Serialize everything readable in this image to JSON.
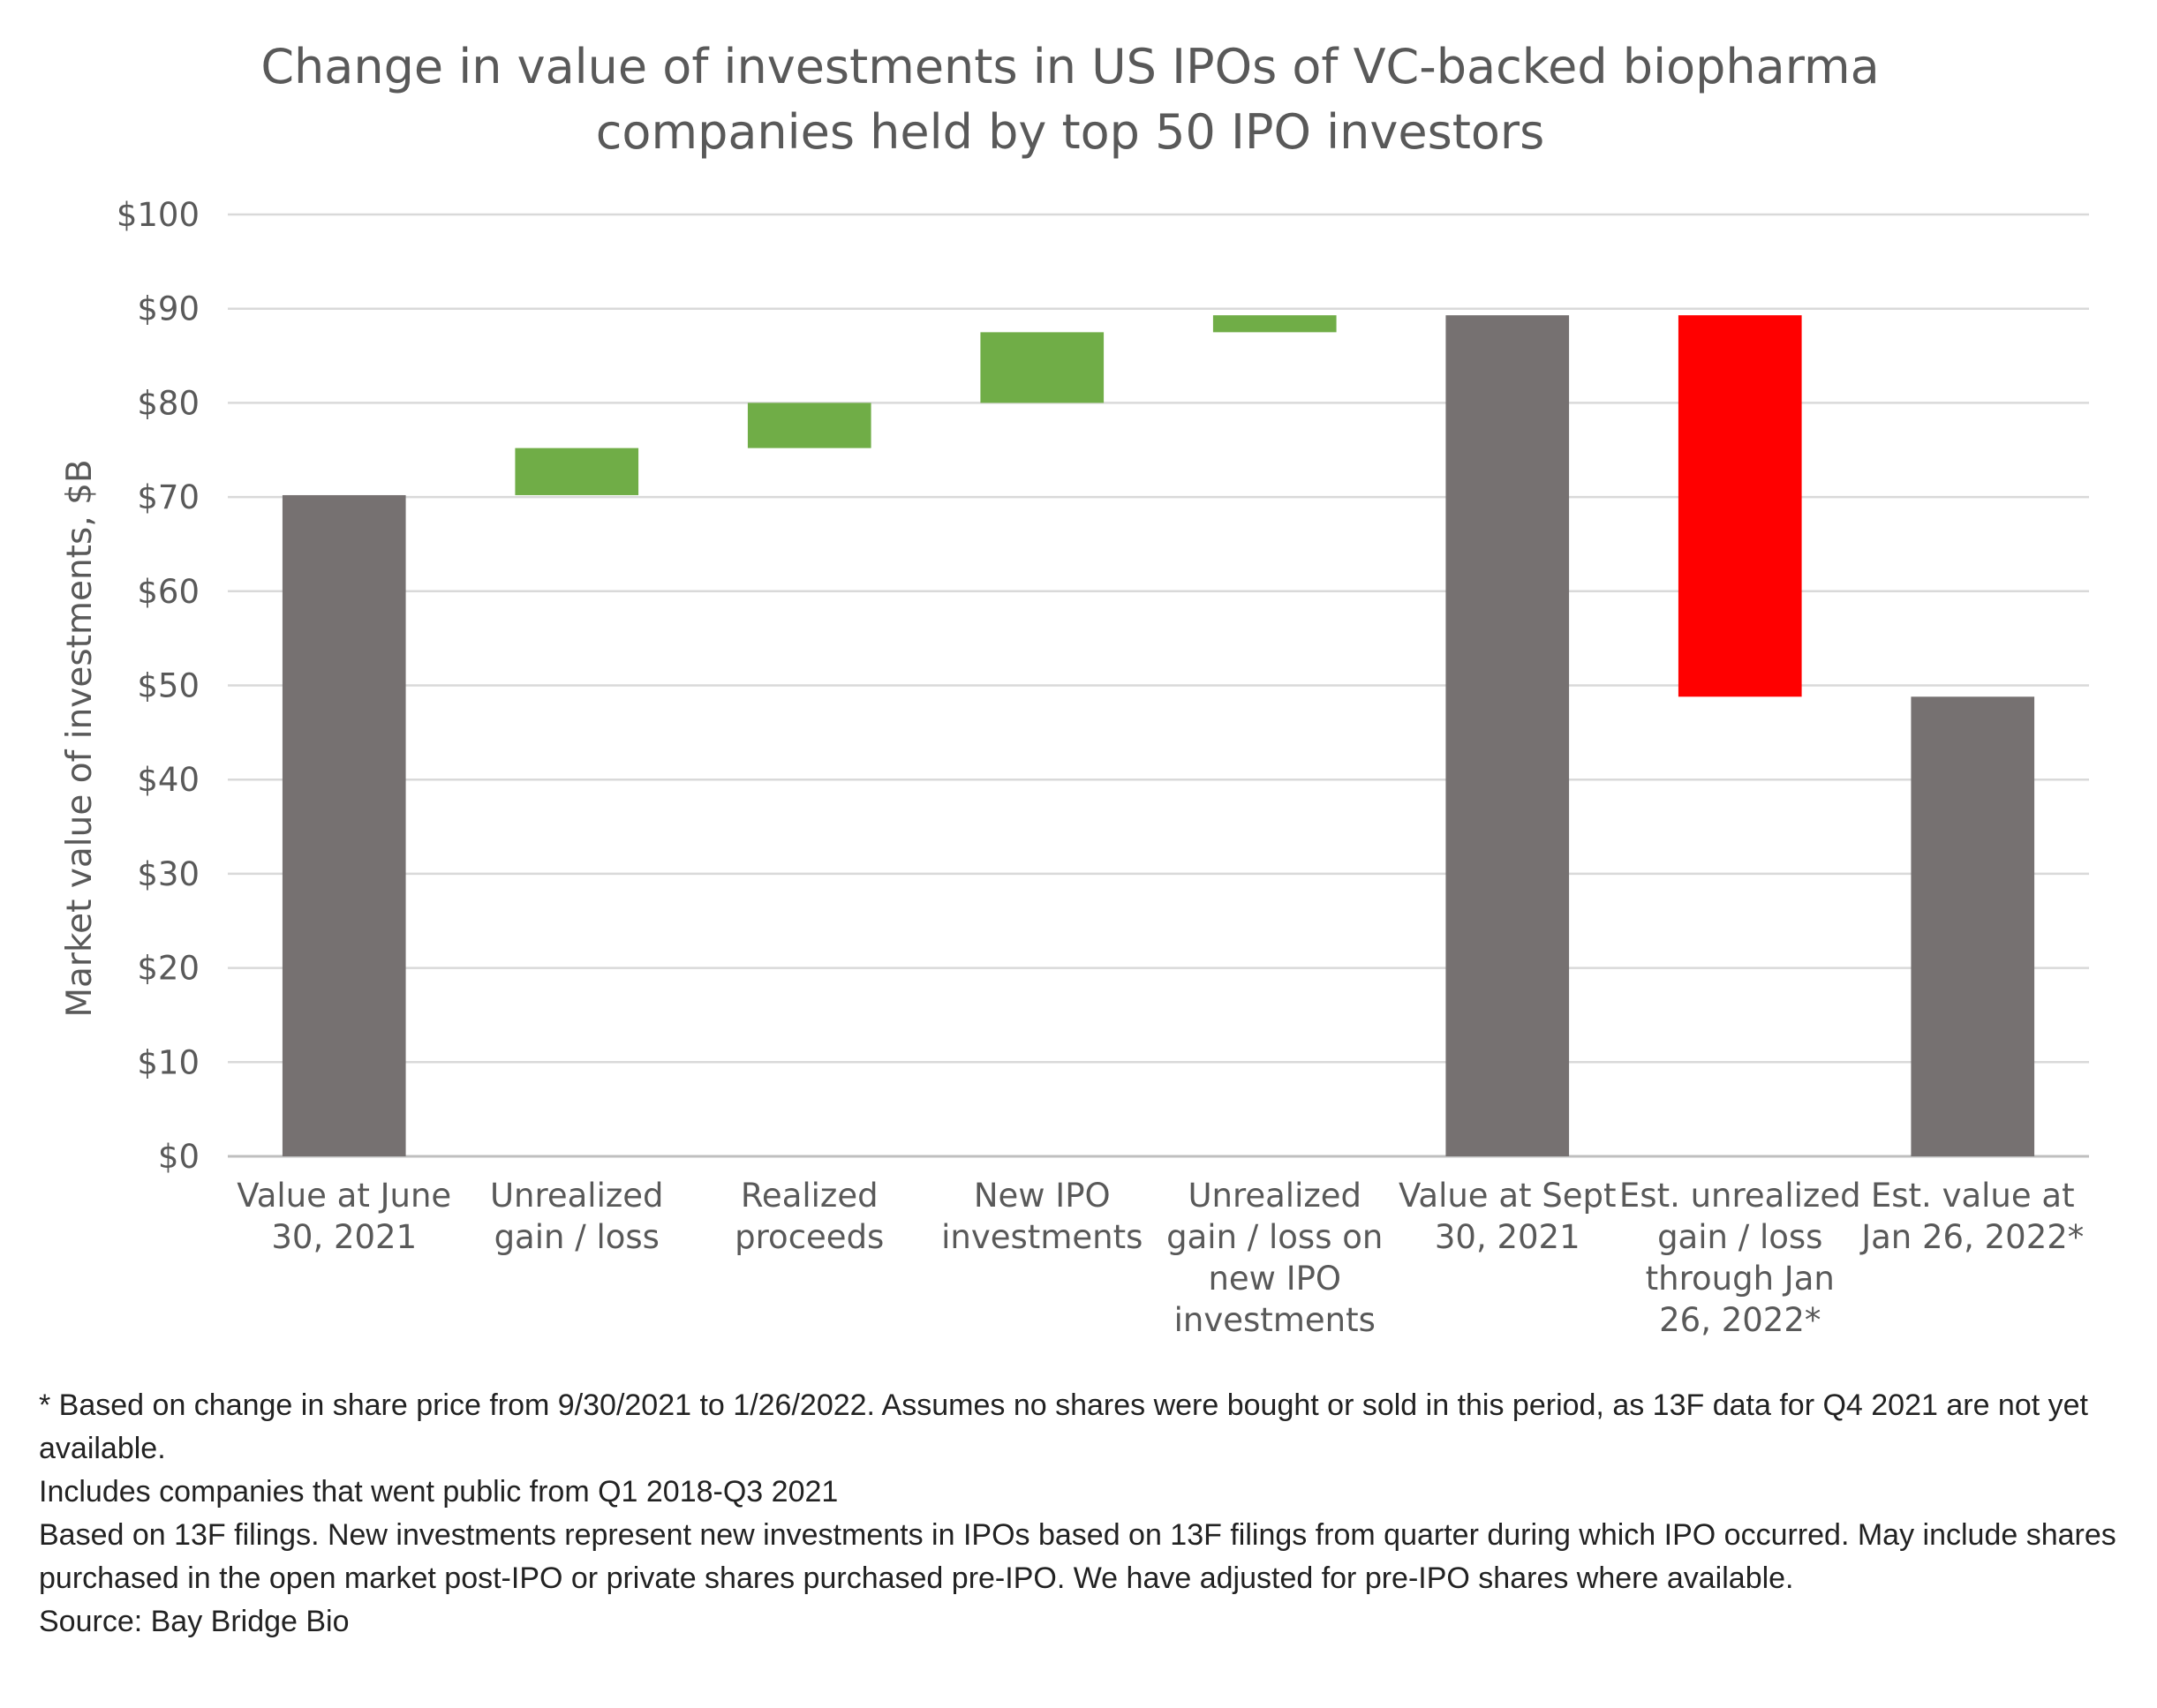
{
  "chart_data": {
    "type": "waterfall",
    "title_lines": [
      "Change in value of investments in US IPOs of VC-backed biopharma",
      "companies held by top 50 IPO investors"
    ],
    "ylabel": "Market value of investments, $B",
    "xlabel": "",
    "ylim": [
      0,
      100
    ],
    "y_ticks": [
      0,
      10,
      20,
      30,
      40,
      50,
      60,
      70,
      80,
      90,
      100
    ],
    "y_tick_labels": [
      "$0",
      "$10",
      "$20",
      "$30",
      "$40",
      "$50",
      "$60",
      "$70",
      "$80",
      "$90",
      "$100"
    ],
    "grid": true,
    "legend": "none",
    "categories": [
      {
        "label_lines": [
          "Value at June",
          "30, 2021"
        ],
        "kind": "total",
        "start": 0,
        "end": 70.2,
        "color": "#767171"
      },
      {
        "label_lines": [
          "Unrealized",
          "gain / loss"
        ],
        "kind": "increase",
        "start": 70.2,
        "end": 75.2,
        "color": "#70AD47"
      },
      {
        "label_lines": [
          "Realized",
          "proceeds"
        ],
        "kind": "increase",
        "start": 75.2,
        "end": 80.0,
        "color": "#70AD47"
      },
      {
        "label_lines": [
          "New IPO",
          "investments"
        ],
        "kind": "increase",
        "start": 80.0,
        "end": 87.5,
        "color": "#70AD47"
      },
      {
        "label_lines": [
          "Unrealized",
          "gain / loss on",
          "new IPO",
          "investments"
        ],
        "kind": "increase",
        "start": 87.5,
        "end": 89.3,
        "color": "#70AD47"
      },
      {
        "label_lines": [
          "Value at Sept",
          "30, 2021"
        ],
        "kind": "total",
        "start": 0,
        "end": 89.3,
        "color": "#767171"
      },
      {
        "label_lines": [
          "Est. unrealized",
          "gain / loss",
          "through Jan",
          "26, 2022*"
        ],
        "kind": "decrease",
        "start": 89.3,
        "end": 48.8,
        "color": "#FF0000"
      },
      {
        "label_lines": [
          "Est. value at",
          "Jan 26, 2022*"
        ],
        "kind": "total",
        "start": 0,
        "end": 48.8,
        "color": "#767171"
      }
    ]
  },
  "footnotes": [
    "* Based on change in share price from 9/30/2021 to 1/26/2022.  Assumes no shares were bought or sold in this period, as 13F data for Q4 2021 are not yet available.",
    "Includes companies that went public from Q1 2018-Q3 2021",
    "Based on 13F filings.  New investments represent new investments in IPOs based on 13F filings from quarter during which IPO occurred.  May include shares purchased in the open market post-IPO or private shares purchased pre-IPO.  We have adjusted for pre-IPO shares where available.",
    "Source: Bay Bridge Bio"
  ],
  "colors": {
    "grid": "#D9D9D9",
    "axis": "#BFBFBF",
    "text": "#595959"
  }
}
